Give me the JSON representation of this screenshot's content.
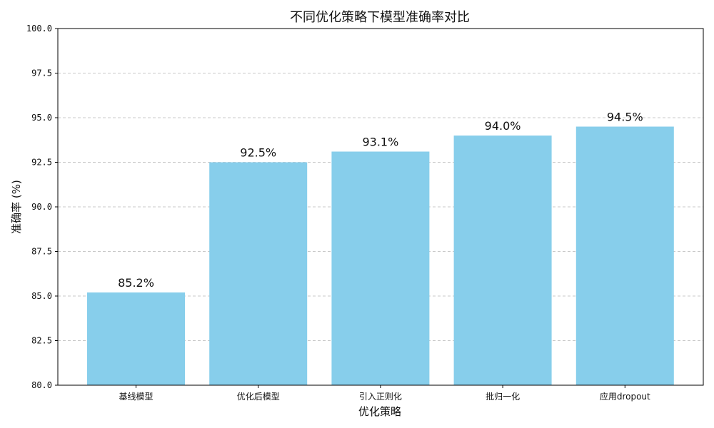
{
  "chart_data": {
    "type": "bar",
    "title": "不同优化策略下模型准确率对比",
    "xlabel": "优化策略",
    "ylabel": "准确率 (%)",
    "categories": [
      "基线模型",
      "优化后模型",
      "引入正则化",
      "批归一化",
      "应用dropout"
    ],
    "values": [
      85.2,
      92.5,
      93.1,
      94.0,
      94.5
    ],
    "data_labels": [
      "85.2%",
      "92.5%",
      "93.1%",
      "94.0%",
      "94.5%"
    ],
    "ylim": [
      80,
      100
    ],
    "yticks": [
      "80.0",
      "82.5",
      "85.0",
      "87.5",
      "90.0",
      "92.5",
      "95.0",
      "97.5",
      "100.0"
    ],
    "grid": "horizontal dashed",
    "bar_color": "#87ceeb",
    "grid_color": "#c8c8c8"
  }
}
